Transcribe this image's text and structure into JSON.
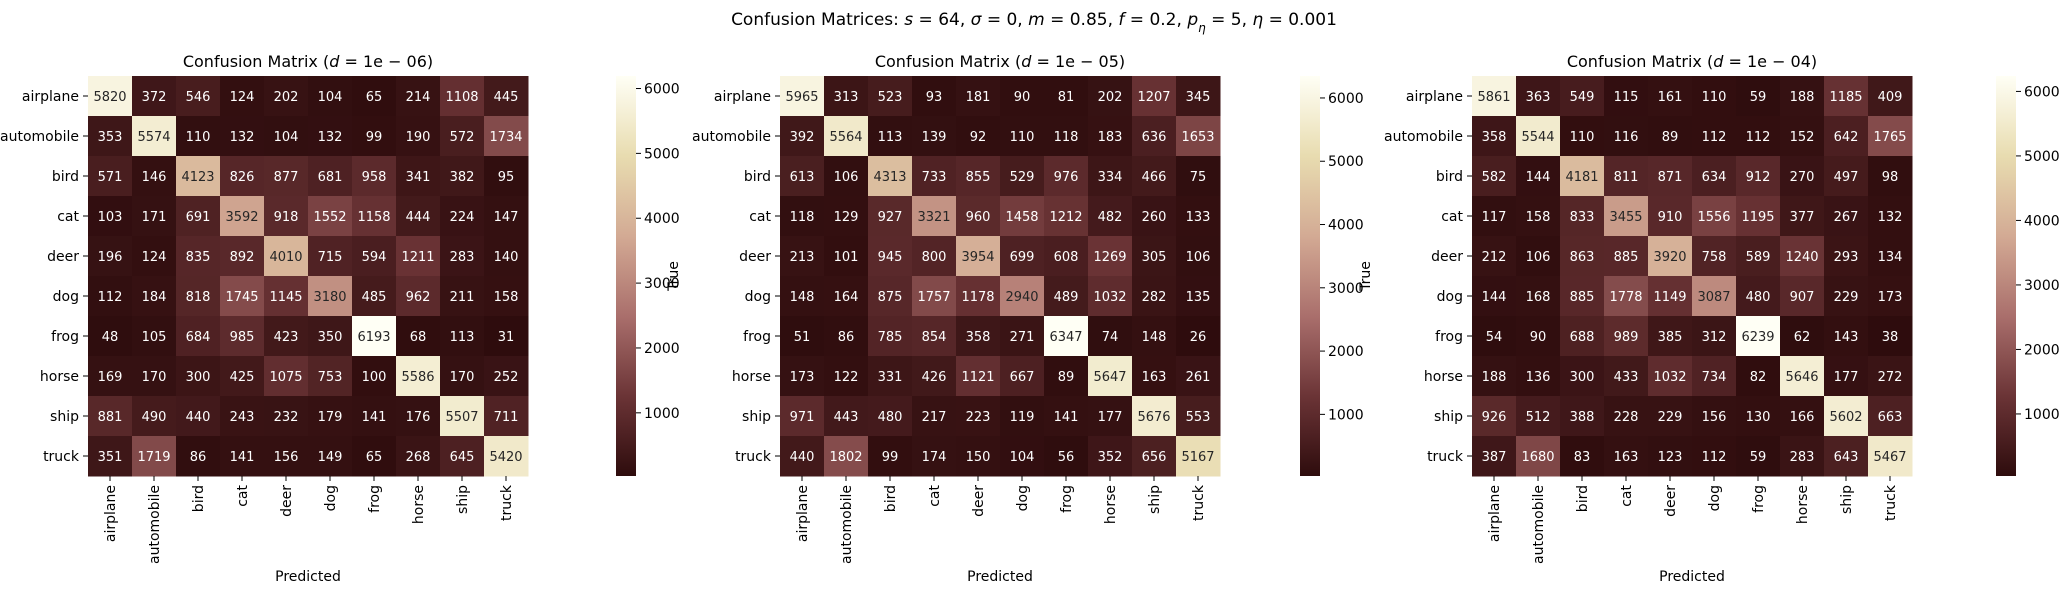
{
  "figure": {
    "suptitle_pre": "Confusion Matrices: ",
    "suptitle_math": [
      {
        "t": "s",
        "i": true
      },
      {
        "t": " = 64, "
      },
      {
        "t": "σ",
        "i": true
      },
      {
        "t": " = 0, "
      },
      {
        "t": "m",
        "i": true
      },
      {
        "t": " = 0.85, "
      },
      {
        "t": "f",
        "i": true
      },
      {
        "t": " = 0.2, "
      },
      {
        "t": "p",
        "i": true
      },
      {
        "t": "η",
        "i": true,
        "sub": true
      },
      {
        "t": " = 5, "
      },
      {
        "t": "η",
        "i": true
      },
      {
        "t": " = 0.001"
      }
    ],
    "colormap": [
      "#2e0c0d",
      "#6b3436",
      "#aa6f6c",
      "#d3aa94",
      "#e8dcb0",
      "#fffff5"
    ]
  },
  "chart_data": [
    {
      "type": "heatmap",
      "title": "Confusion Matrix (d = 1e − 06)",
      "title_prefix": "Confusion Matrix (",
      "title_var": "d",
      "title_value": " = 1e − 06)",
      "xlabel": "Predicted",
      "ylabel": "True",
      "categories": [
        "airplane",
        "automobile",
        "bird",
        "cat",
        "deer",
        "dog",
        "frog",
        "horse",
        "ship",
        "truck"
      ],
      "colorbar": {
        "range": [
          26,
          6193
        ],
        "ticks": [
          1000,
          2000,
          3000,
          4000,
          5000,
          6000
        ]
      },
      "matrix": [
        [
          5820,
          372,
          546,
          124,
          202,
          104,
          65,
          214,
          1108,
          445
        ],
        [
          353,
          5574,
          110,
          132,
          104,
          132,
          99,
          190,
          572,
          1734
        ],
        [
          571,
          146,
          4123,
          826,
          877,
          681,
          958,
          341,
          382,
          95
        ],
        [
          103,
          171,
          691,
          3592,
          918,
          1552,
          1158,
          444,
          224,
          147
        ],
        [
          196,
          124,
          835,
          892,
          4010,
          715,
          594,
          1211,
          283,
          140
        ],
        [
          112,
          184,
          818,
          1745,
          1145,
          3180,
          485,
          962,
          211,
          158
        ],
        [
          48,
          105,
          684,
          985,
          423,
          350,
          6193,
          68,
          113,
          31
        ],
        [
          169,
          170,
          300,
          425,
          1075,
          753,
          100,
          5586,
          170,
          252
        ],
        [
          881,
          490,
          440,
          243,
          232,
          179,
          141,
          176,
          5507,
          711
        ],
        [
          351,
          1719,
          86,
          141,
          156,
          149,
          65,
          268,
          645,
          5420
        ]
      ]
    },
    {
      "type": "heatmap",
      "title": "Confusion Matrix (d = 1e − 05)",
      "title_prefix": "Confusion Matrix (",
      "title_var": "d",
      "title_value": " = 1e − 05)",
      "xlabel": "Predicted",
      "ylabel": "True",
      "categories": [
        "airplane",
        "automobile",
        "bird",
        "cat",
        "deer",
        "dog",
        "frog",
        "horse",
        "ship",
        "truck"
      ],
      "colorbar": {
        "range": [
          26,
          6347
        ],
        "ticks": [
          1000,
          2000,
          3000,
          4000,
          5000,
          6000
        ]
      },
      "matrix": [
        [
          5965,
          313,
          523,
          93,
          181,
          90,
          81,
          202,
          1207,
          345
        ],
        [
          392,
          5564,
          113,
          139,
          92,
          110,
          118,
          183,
          636,
          1653
        ],
        [
          613,
          106,
          4313,
          733,
          855,
          529,
          976,
          334,
          466,
          75
        ],
        [
          118,
          129,
          927,
          3321,
          960,
          1458,
          1212,
          482,
          260,
          133
        ],
        [
          213,
          101,
          945,
          800,
          3954,
          699,
          608,
          1269,
          305,
          106
        ],
        [
          148,
          164,
          875,
          1757,
          1178,
          2940,
          489,
          1032,
          282,
          135
        ],
        [
          51,
          86,
          785,
          854,
          358,
          271,
          6347,
          74,
          148,
          26
        ],
        [
          173,
          122,
          331,
          426,
          1121,
          667,
          89,
          5647,
          163,
          261
        ],
        [
          971,
          443,
          480,
          217,
          223,
          119,
          141,
          177,
          5676,
          553
        ],
        [
          440,
          1802,
          99,
          174,
          150,
          104,
          56,
          352,
          656,
          5167
        ]
      ]
    },
    {
      "type": "heatmap",
      "title": "Confusion Matrix (d = 1e − 04)",
      "title_prefix": "Confusion Matrix (",
      "title_var": "d",
      "title_value": " = 1e − 04)",
      "xlabel": "Predicted",
      "ylabel": "True",
      "categories": [
        "airplane",
        "automobile",
        "bird",
        "cat",
        "deer",
        "dog",
        "frog",
        "horse",
        "ship",
        "truck"
      ],
      "colorbar": {
        "range": [
          38,
          6239
        ],
        "ticks": [
          1000,
          2000,
          3000,
          4000,
          5000,
          6000
        ]
      },
      "matrix": [
        [
          5861,
          363,
          549,
          115,
          161,
          110,
          59,
          188,
          1185,
          409
        ],
        [
          358,
          5544,
          110,
          116,
          89,
          112,
          112,
          152,
          642,
          1765
        ],
        [
          582,
          144,
          4181,
          811,
          871,
          634,
          912,
          270,
          497,
          98
        ],
        [
          117,
          158,
          833,
          3455,
          910,
          1556,
          1195,
          377,
          267,
          132
        ],
        [
          212,
          106,
          863,
          885,
          3920,
          758,
          589,
          1240,
          293,
          134
        ],
        [
          144,
          168,
          885,
          1778,
          1149,
          3087,
          480,
          907,
          229,
          173
        ],
        [
          54,
          90,
          688,
          989,
          385,
          312,
          6239,
          62,
          143,
          38
        ],
        [
          188,
          136,
          300,
          433,
          1032,
          734,
          82,
          5646,
          177,
          272
        ],
        [
          926,
          512,
          388,
          228,
          229,
          156,
          130,
          166,
          5602,
          663
        ],
        [
          387,
          1680,
          83,
          163,
          123,
          112,
          59,
          283,
          643,
          5467
        ]
      ]
    }
  ]
}
